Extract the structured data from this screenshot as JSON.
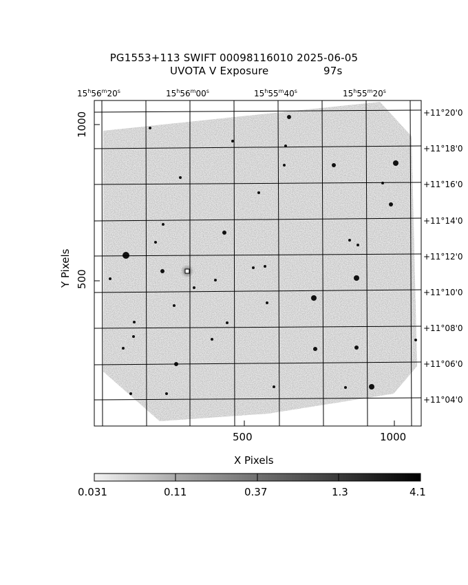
{
  "title": {
    "line1": "PG1553+113 SWIFT 00098116010 2025-06-05",
    "exposure_label": "UVOTA V Exposure",
    "exposure_value": "97s"
  },
  "ra_labels": [
    {
      "h": "15",
      "m": "56",
      "s": "20"
    },
    {
      "h": "15",
      "m": "56",
      "s": "00"
    },
    {
      "h": "15",
      "m": "55",
      "s": "40"
    },
    {
      "h": "15",
      "m": "55",
      "s": "20"
    }
  ],
  "dec_labels": [
    "+11°20'0",
    "+11°18'0",
    "+11°16'0",
    "+11°14'0",
    "+11°12'0",
    "+11°10'0",
    "+11°08'0",
    "+11°06'0",
    "+11°04'0"
  ],
  "y_axis": {
    "title": "Y Pixels",
    "ticks": [
      "1000",
      "500"
    ]
  },
  "x_axis": {
    "title": "X Pixels",
    "ticks": [
      "500",
      "1000"
    ]
  },
  "colorbar": {
    "labels": [
      "0.031",
      "0.11",
      "0.37",
      "1.3",
      "4.1"
    ]
  },
  "colors": {
    "background": "#ffffff",
    "axes": "#000000",
    "sky_noise": "#8c8c8c"
  }
}
